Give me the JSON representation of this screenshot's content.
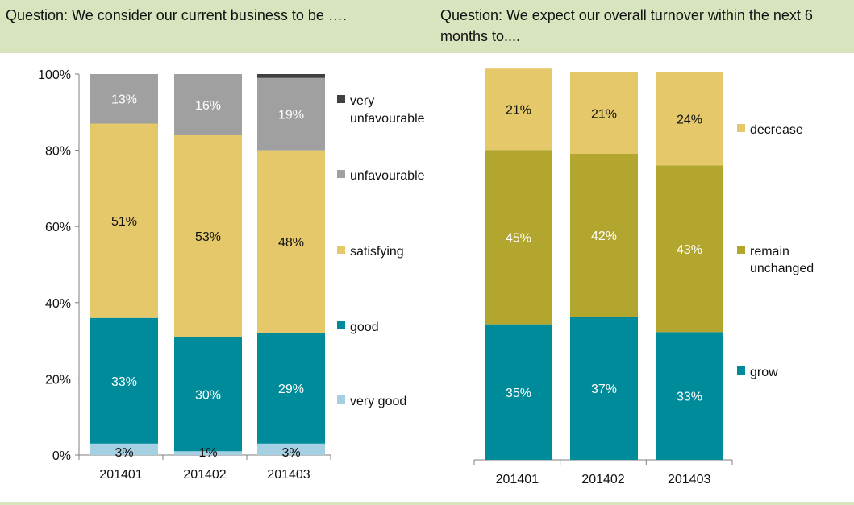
{
  "left_panel": {
    "question": "Question: We consider our current business to be …."
  },
  "right_panel": {
    "question": "Question: We expect our overall turnover within the next 6 months to...."
  },
  "chart_data": [
    {
      "type": "bar",
      "stacked": true,
      "title": "",
      "categories": [
        "201401",
        "201402",
        "201403"
      ],
      "ylim": [
        0,
        100
      ],
      "yticks": [
        "0%",
        "20%",
        "40%",
        "60%",
        "80%",
        "100%"
      ],
      "legend_position": "right",
      "series": [
        {
          "name": "very good",
          "values": [
            3,
            1,
            3
          ],
          "labels": [
            "3%",
            "1%",
            "3%"
          ],
          "color": "#a5d0e4",
          "label_color": "#111111"
        },
        {
          "name": "good",
          "values": [
            33,
            30,
            29
          ],
          "labels": [
            "33%",
            "30%",
            "29%"
          ],
          "color": "#008b9a",
          "label_color": "#ffffff"
        },
        {
          "name": "satisfying",
          "values": [
            51,
            53,
            48
          ],
          "labels": [
            "51%",
            "53%",
            "48%"
          ],
          "color": "#e5c86a",
          "label_color": "#111111"
        },
        {
          "name": "unfavourable",
          "values": [
            13,
            16,
            19
          ],
          "labels": [
            "13%",
            "16%",
            "19%"
          ],
          "color": "#a0a0a0",
          "label_color": "#ffffff"
        },
        {
          "name": "very unfavourable",
          "values": [
            0,
            0,
            1
          ],
          "labels": [
            "",
            "",
            ""
          ],
          "color": "#404040",
          "label_color": "#ffffff"
        }
      ]
    },
    {
      "type": "bar",
      "stacked": true,
      "title": "",
      "categories": [
        "201401",
        "201402",
        "201403"
      ],
      "ylim": [
        0,
        100
      ],
      "legend_position": "right",
      "series": [
        {
          "name": "grow",
          "values": [
            35,
            37,
            33
          ],
          "labels": [
            "35%",
            "37%",
            "33%"
          ],
          "color": "#008b9a",
          "label_color": "#ffffff"
        },
        {
          "name": "remain unchanged",
          "values": [
            45,
            42,
            43
          ],
          "labels": [
            "45%",
            "42%",
            "43%"
          ],
          "color": "#b2a62e",
          "label_color": "#ffffff"
        },
        {
          "name": "decrease",
          "values": [
            21,
            21,
            24
          ],
          "labels": [
            "21%",
            "21%",
            "24%"
          ],
          "color": "#e5c86a",
          "label_color": "#111111"
        }
      ]
    }
  ]
}
